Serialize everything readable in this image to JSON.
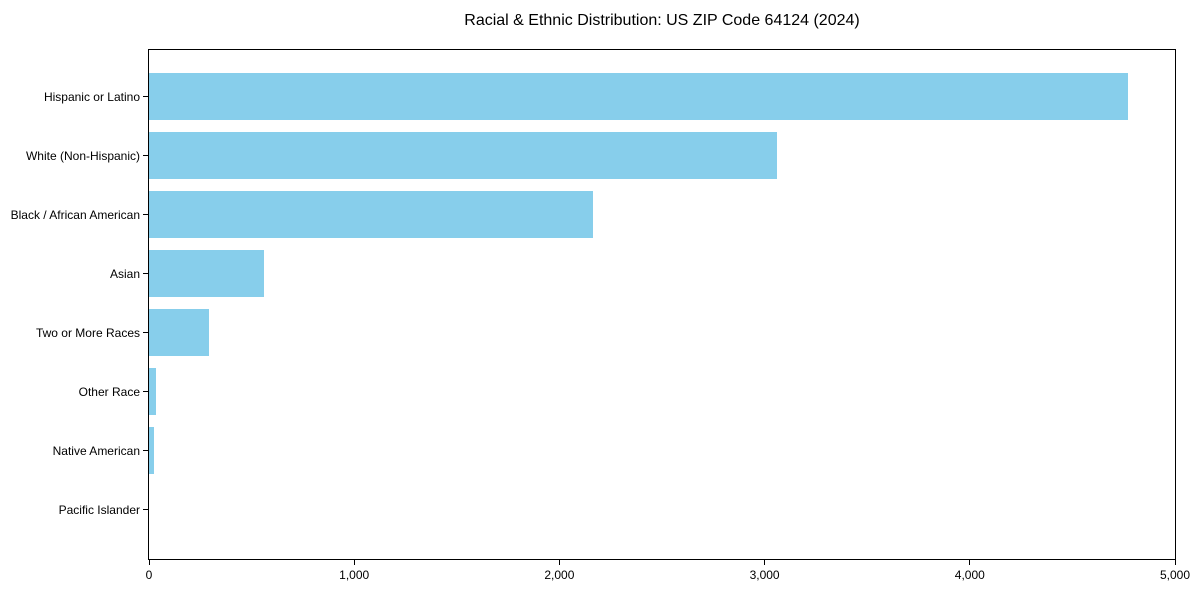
{
  "chart_data": {
    "type": "bar",
    "orientation": "horizontal",
    "title": "Racial & Ethnic Distribution: US ZIP Code 64124 (2024)",
    "categories": [
      "Hispanic or Latino",
      "White (Non-Hispanic)",
      "Black / African American",
      "Asian",
      "Two or More Races",
      "Other Race",
      "Native American",
      "Pacific Islander"
    ],
    "values": [
      4770,
      3060,
      2165,
      560,
      292,
      33,
      26,
      0
    ],
    "xlabel": "",
    "ylabel": "",
    "xlim": [
      0,
      5000
    ],
    "xticks": [
      0,
      1000,
      2000,
      3000,
      4000,
      5000
    ],
    "xtick_labels": [
      "0",
      "1,000",
      "2,000",
      "3,000",
      "4,000",
      "5,000"
    ],
    "bar_color": "#87ceeb",
    "axis_color": "#000000",
    "text_color": "#000000",
    "background_color": "#ffffff",
    "grid": false,
    "legend_position": "none"
  }
}
